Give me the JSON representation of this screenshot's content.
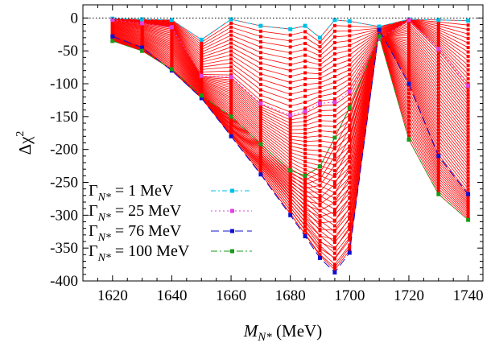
{
  "chart_data": {
    "type": "line",
    "title": "",
    "xlabel_main": "M",
    "xlabel_sub": "N*",
    "xlabel_unit": " (MeV)",
    "ylabel_main": "Δχ",
    "ylabel_sup": "2",
    "xlim": [
      1610,
      1745
    ],
    "ylim": [
      -400,
      20
    ],
    "x_ticks": [
      1620,
      1640,
      1660,
      1680,
      1700,
      1720,
      1740
    ],
    "y_ticks": [
      0,
      -50,
      -100,
      -150,
      -200,
      -250,
      -300,
      -350,
      -400
    ],
    "x": [
      1620,
      1630,
      1640,
      1650,
      1660,
      1670,
      1680,
      1685,
      1690,
      1695,
      1700,
      1710,
      1720,
      1730,
      1740
    ],
    "zero_line": true,
    "legend_position": "bottom-left",
    "bundle_color": "#ff0000",
    "series": [
      {
        "name": "Γ_N* = 1 MeV",
        "legend_main": "Γ",
        "legend_sub": "N*",
        "legend_rest": " = 1 MeV",
        "color": "#00bfe6",
        "dash": "6,3,2,3",
        "values": [
          -1,
          -2,
          -3,
          -33,
          -2,
          -12,
          -17,
          -12,
          -30,
          -3,
          -5,
          -13,
          -2,
          -3,
          -4
        ]
      },
      {
        "name": "Γ_N* = 25 MeV",
        "legend_main": "Γ",
        "legend_sub": "N*",
        "legend_rest": " = 25 MeV",
        "color": "#e040e0",
        "dash": "2,3",
        "values": [
          -3,
          -8,
          -14,
          -88,
          -90,
          -130,
          -148,
          -142,
          -130,
          -128,
          -112,
          -32,
          -3,
          -47,
          -103
        ]
      },
      {
        "name": "Γ_N* = 76 MeV",
        "legend_main": "Γ",
        "legend_sub": "N*",
        "legend_rest": " = 76 MeV",
        "color": "#1010d0",
        "dash": "10,5",
        "values": [
          -28,
          -45,
          -80,
          -122,
          -180,
          -238,
          -300,
          -332,
          -365,
          -387,
          -357,
          -18,
          -100,
          -210,
          -268
        ]
      },
      {
        "name": "Γ_N* = 100 MeV",
        "legend_main": "Γ",
        "legend_sub": "N*",
        "legend_rest": " = 100 MeV",
        "color": "#1a9a1a",
        "dash": "8,3,2,3",
        "values": [
          -35,
          -50,
          -78,
          -118,
          -150,
          -192,
          -232,
          -240,
          -226,
          -182,
          -137,
          -28,
          -185,
          -268,
          -307
        ]
      }
    ]
  }
}
